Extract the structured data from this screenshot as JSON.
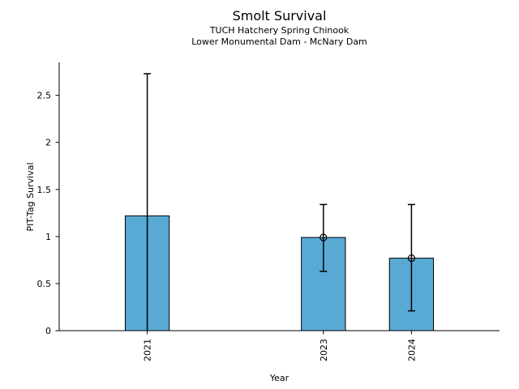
{
  "chart_data": {
    "type": "bar",
    "title": "Smolt Survival",
    "subtitle_lines": [
      "TUCH Hatchery Spring Chinook",
      "Lower Monumental Dam - McNary Dam"
    ],
    "xlabel": "Year",
    "ylabel": "PIT-Tag Survival",
    "categories": [
      "2021",
      "2023",
      "2024"
    ],
    "x_positions": [
      2021,
      2023,
      2024
    ],
    "values": [
      1.22,
      0.99,
      0.77
    ],
    "error_high": [
      2.73,
      1.34,
      1.34
    ],
    "error_low": [
      0.0,
      0.63,
      0.21
    ],
    "error_low_clipped": [
      true,
      false,
      false
    ],
    "point_markers": [
      false,
      true,
      true
    ],
    "bar_width_years": 0.5,
    "xlim": [
      2020,
      2025
    ],
    "ylim": [
      0,
      2.85
    ],
    "yticks": [
      0,
      0.5,
      1,
      1.5,
      2,
      2.5
    ],
    "ytick_labels": [
      "0",
      "0.5",
      "1",
      "1.5",
      "2",
      "2.5"
    ],
    "xtick_rotation_deg": 90,
    "grid": false,
    "colors": {
      "bar_fill": "#58a9d4",
      "bar_edge": "#000000",
      "error": "#000000",
      "axis": "#000000",
      "text": "#000000",
      "background": "#ffffff"
    }
  }
}
